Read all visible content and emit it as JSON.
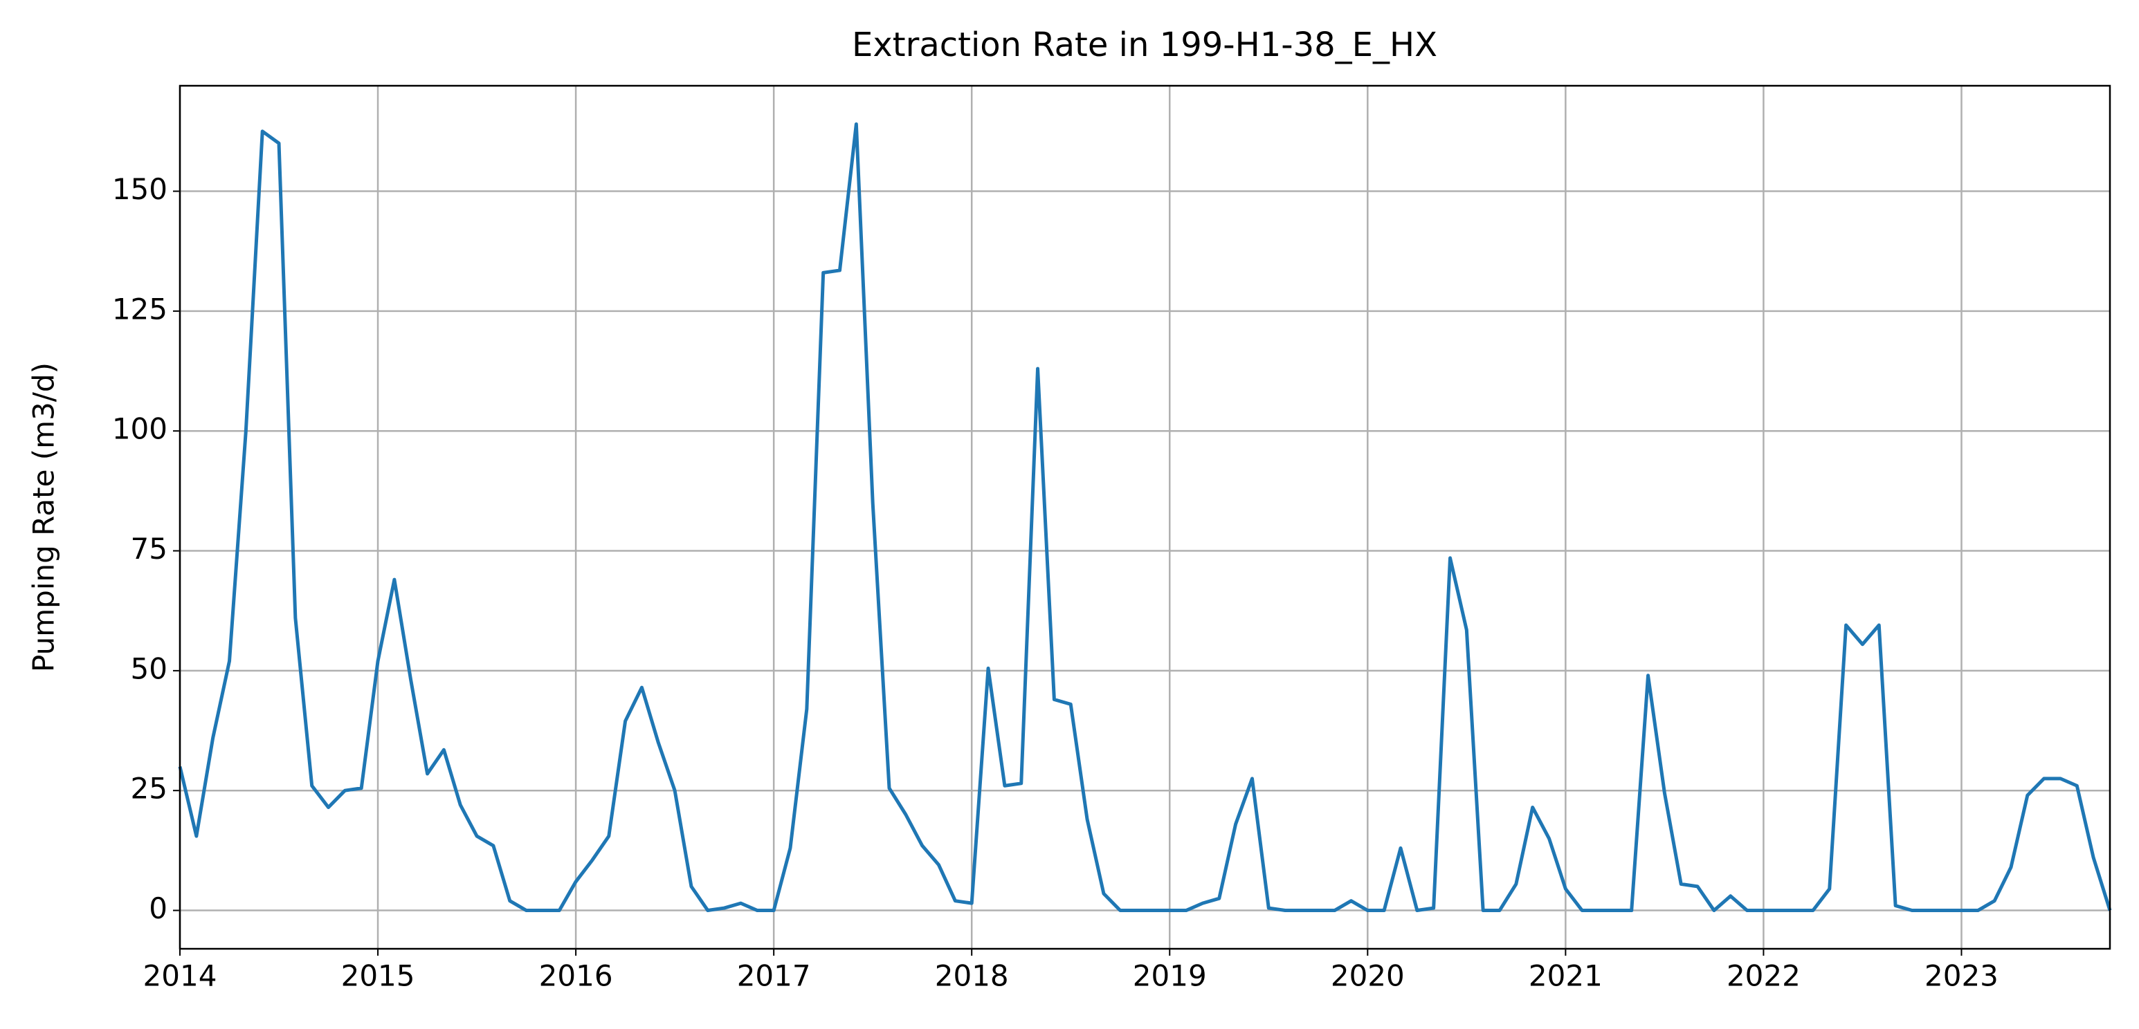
{
  "chart_data": {
    "type": "line",
    "title": "Extraction Rate in 199-H1-38_E_HX",
    "ylabel": "Pumping Rate (m3/d)",
    "x": [
      2014,
      2014.0833,
      2014.1667,
      2014.25,
      2014.3333,
      2014.4167,
      2014.5,
      2014.5833,
      2014.6667,
      2014.75,
      2014.8333,
      2014.9167,
      2015,
      2015.0833,
      2015.1667,
      2015.25,
      2015.3333,
      2015.4167,
      2015.5,
      2015.5833,
      2015.6667,
      2015.75,
      2015.8333,
      2015.9167,
      2016,
      2016.0833,
      2016.1667,
      2016.25,
      2016.3333,
      2016.4167,
      2016.5,
      2016.5833,
      2016.6667,
      2016.75,
      2016.8333,
      2016.9167,
      2017,
      2017.0833,
      2017.1667,
      2017.25,
      2017.3333,
      2017.4167,
      2017.5,
      2017.5833,
      2017.6667,
      2017.75,
      2017.8333,
      2017.9167,
      2018,
      2018.0833,
      2018.1667,
      2018.25,
      2018.3333,
      2018.4167,
      2018.5,
      2018.5833,
      2018.6667,
      2018.75,
      2018.8333,
      2018.9167,
      2019,
      2019.0833,
      2019.1667,
      2019.25,
      2019.3333,
      2019.4167,
      2019.5,
      2019.5833,
      2019.6667,
      2019.75,
      2019.8333,
      2019.9167,
      2020,
      2020.0833,
      2020.1667,
      2020.25,
      2020.3333,
      2020.4167,
      2020.5,
      2020.5833,
      2020.6667,
      2020.75,
      2020.8333,
      2020.9167,
      2021,
      2021.0833,
      2021.1667,
      2021.25,
      2021.3333,
      2021.4167,
      2021.5,
      2021.5833,
      2021.6667,
      2021.75,
      2021.8333,
      2021.9167,
      2022,
      2022.0833,
      2022.1667,
      2022.25,
      2022.3333,
      2022.4167,
      2022.5,
      2022.5833,
      2022.6667,
      2022.75,
      2022.8333,
      2022.9167,
      2023,
      2023.0833,
      2023.1667,
      2023.25,
      2023.3333,
      2023.4167,
      2023.5,
      2023.5833,
      2023.6667,
      2023.75
    ],
    "series": [
      {
        "name": "Extraction Rate",
        "color": "#1f77b4",
        "values": [
          30,
          15.5,
          36,
          52,
          100,
          162.5,
          160,
          61,
          26,
          21.5,
          25,
          25.5,
          52,
          69,
          48,
          28.5,
          33.5,
          22,
          15.5,
          13.5,
          2,
          0,
          0,
          0,
          6,
          10.5,
          15.5,
          39.5,
          46.5,
          35,
          25,
          5,
          0,
          0.5,
          1.5,
          0,
          0,
          13,
          42,
          133,
          133.5,
          164,
          85,
          25.5,
          20,
          13.5,
          9.5,
          2,
          1.5,
          50.5,
          26,
          26.5,
          113,
          44,
          43,
          19,
          3.5,
          0,
          0,
          0,
          0,
          0,
          1.5,
          2.5,
          18,
          27.5,
          0.5,
          0,
          0,
          0,
          0,
          2,
          0,
          0,
          13,
          0,
          0.5,
          73.5,
          58.5,
          0,
          0,
          5.5,
          21.5,
          15,
          4.5,
          0,
          0,
          0,
          0,
          49,
          24.5,
          5.5,
          5,
          0,
          3,
          0,
          0,
          0,
          0,
          0,
          4.5,
          59.5,
          55.5,
          59.5,
          1,
          0,
          0,
          0,
          0,
          0,
          2,
          9,
          24,
          27.5,
          27.5,
          26,
          11,
          0
        ]
      }
    ],
    "xlim": [
      2014,
      2023.75
    ],
    "xticks": [
      2014,
      2015,
      2016,
      2017,
      2018,
      2019,
      2020,
      2021,
      2022,
      2023
    ],
    "ylim": [
      -8,
      172
    ],
    "yticks": [
      0,
      25,
      50,
      75,
      100,
      125,
      150
    ],
    "grid": true
  }
}
